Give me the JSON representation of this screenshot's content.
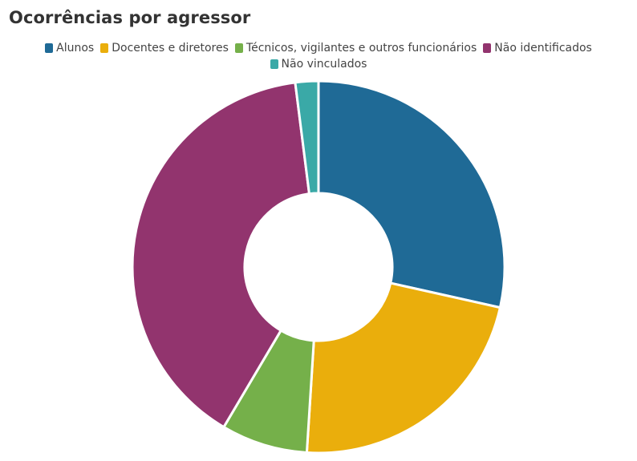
{
  "chart_data": {
    "type": "pie",
    "title": "Ocorrências por agressor",
    "legend_placement": "top",
    "donut": true,
    "categories": [
      "Alunos",
      "Docentes e diretores",
      "Técnicos, vigilantes e outros funcionários",
      "Não identificados",
      "Não vinculados"
    ],
    "values": [
      28.5,
      22.5,
      7.5,
      39.5,
      2.0
    ],
    "colors": [
      "#1f6a96",
      "#eaae0c",
      "#75b04a",
      "#92346e",
      "#3aa9a7"
    ]
  }
}
